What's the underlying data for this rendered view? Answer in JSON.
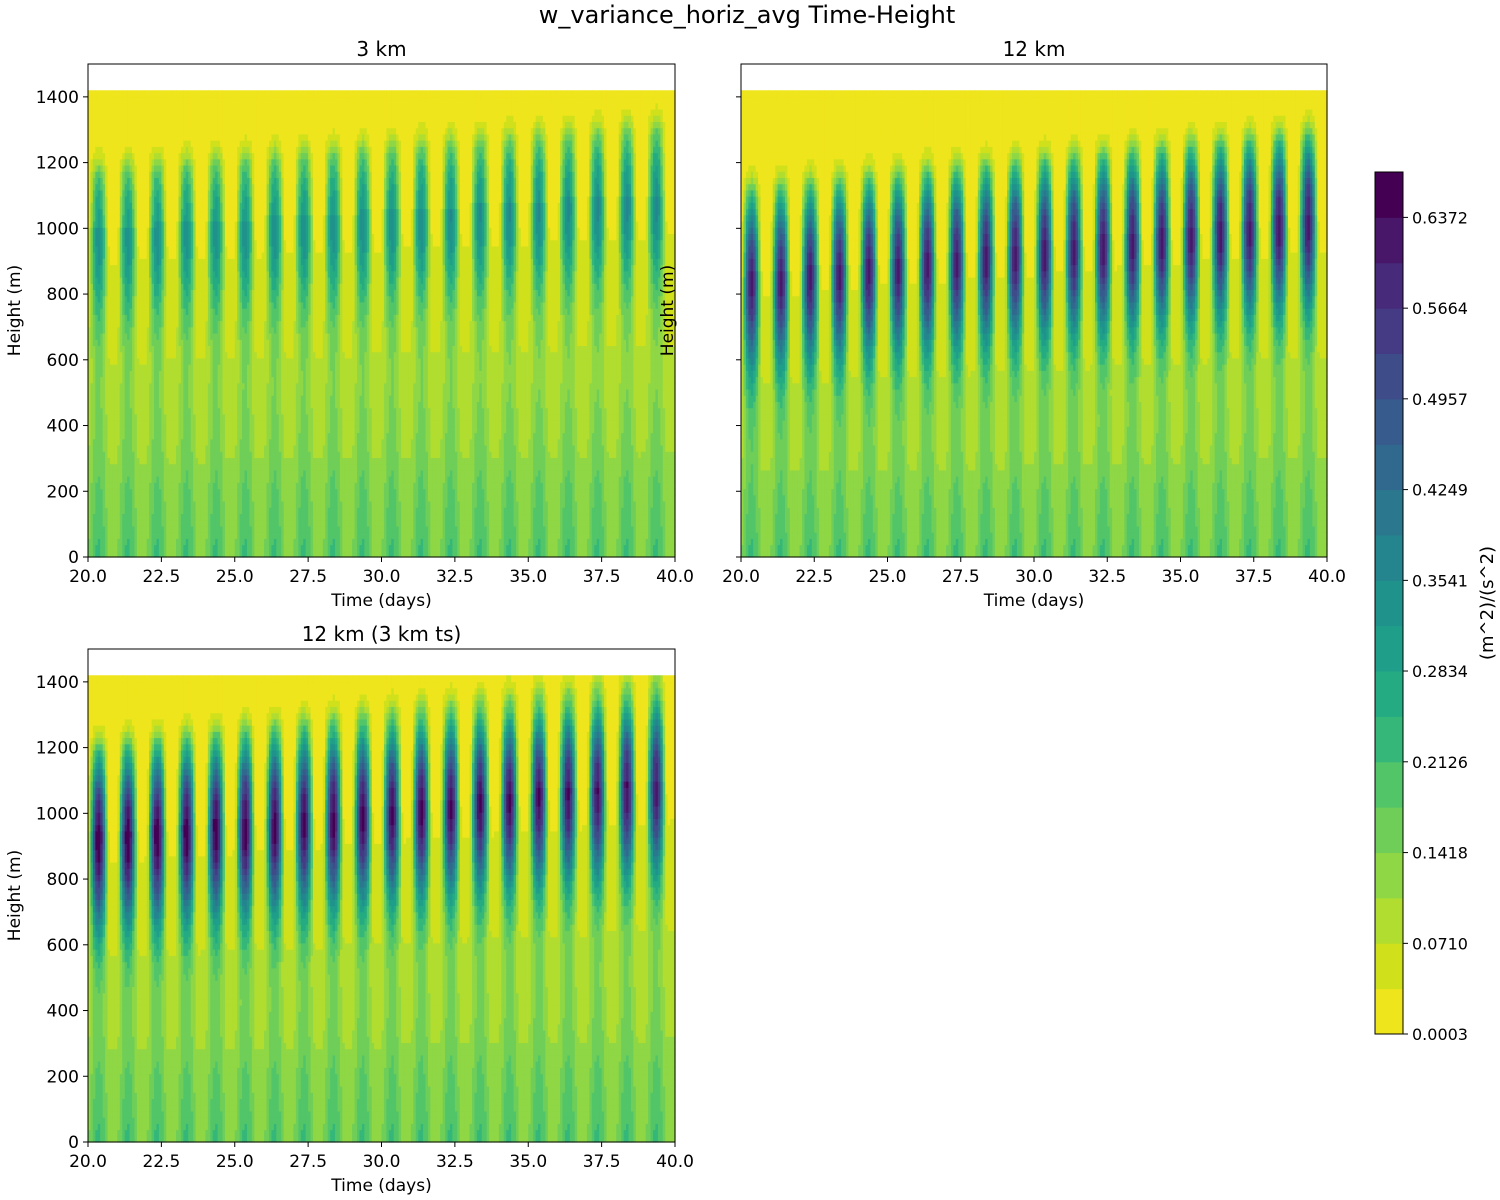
{
  "figure": {
    "title": "w_variance_horiz_avg Time-Height"
  },
  "chart_data": {
    "type": "heatmap",
    "title": "w_variance_horiz_avg Time-Height",
    "xlabel": "Time (days)",
    "ylabel": "Height (m)",
    "xlim": [
      20.0,
      40.0
    ],
    "ylim": [
      0,
      1500
    ],
    "xticks": [
      20.0,
      22.5,
      25.0,
      27.5,
      30.0,
      32.5,
      35.0,
      37.5,
      40.0
    ],
    "xtick_labels": [
      "20.0",
      "22.5",
      "25.0",
      "27.5",
      "30.0",
      "32.5",
      "35.0",
      "37.5",
      "40.0"
    ],
    "yticks": [
      0,
      200,
      400,
      600,
      800,
      1000,
      1200,
      1400
    ],
    "ytick_labels": [
      "0",
      "200",
      "400",
      "600",
      "800",
      "1000",
      "1200",
      "1400"
    ],
    "data_top_height": 1420,
    "diurnal_cycles": 20,
    "colorbar": {
      "label": "(m^2)/(s^2)",
      "vmin": 0.0003,
      "vmax": 0.6726,
      "tick_values": [
        0.0003,
        0.071,
        0.1418,
        0.2126,
        0.2834,
        0.3541,
        0.4249,
        0.4957,
        0.5664,
        0.6372
      ],
      "tick_labels": [
        "0.0003",
        "0.0710",
        "0.1418",
        "0.2126",
        "0.2834",
        "0.3541",
        "0.4249",
        "0.4957",
        "0.5664",
        "0.6372"
      ],
      "levels": 19,
      "colors": [
        "#efe51c",
        "#d0e11c",
        "#b0dd2f",
        "#8fd744",
        "#6ece58",
        "#52c569",
        "#35b779",
        "#25ab82",
        "#1f9e89",
        "#20928c",
        "#25858e",
        "#2b788e",
        "#31688e",
        "#375b8d",
        "#3e4c8a",
        "#443b84",
        "#472a7a",
        "#481769",
        "#440154"
      ]
    },
    "panels": [
      {
        "title": "3 km",
        "show_ylabels": true,
        "peak_height_start": 1000,
        "peak_height_end": 1110,
        "peak_value_start": 0.3,
        "peak_value_end": 0.33,
        "top_start": 1160,
        "top_end": 1300
      },
      {
        "title": "12 km",
        "show_ylabels": false,
        "peak_height_start": 860,
        "peak_height_end": 1050,
        "peak_value_start": 0.58,
        "peak_value_end": 0.6,
        "top_start": 1110,
        "top_end": 1280
      },
      {
        "title": "12 km (3 km ts)",
        "show_ylabels": true,
        "peak_height_start": 940,
        "peak_height_end": 1110,
        "peak_value_start": 0.65,
        "peak_value_end": 0.6,
        "top_start": 1190,
        "top_end": 1410
      }
    ]
  }
}
